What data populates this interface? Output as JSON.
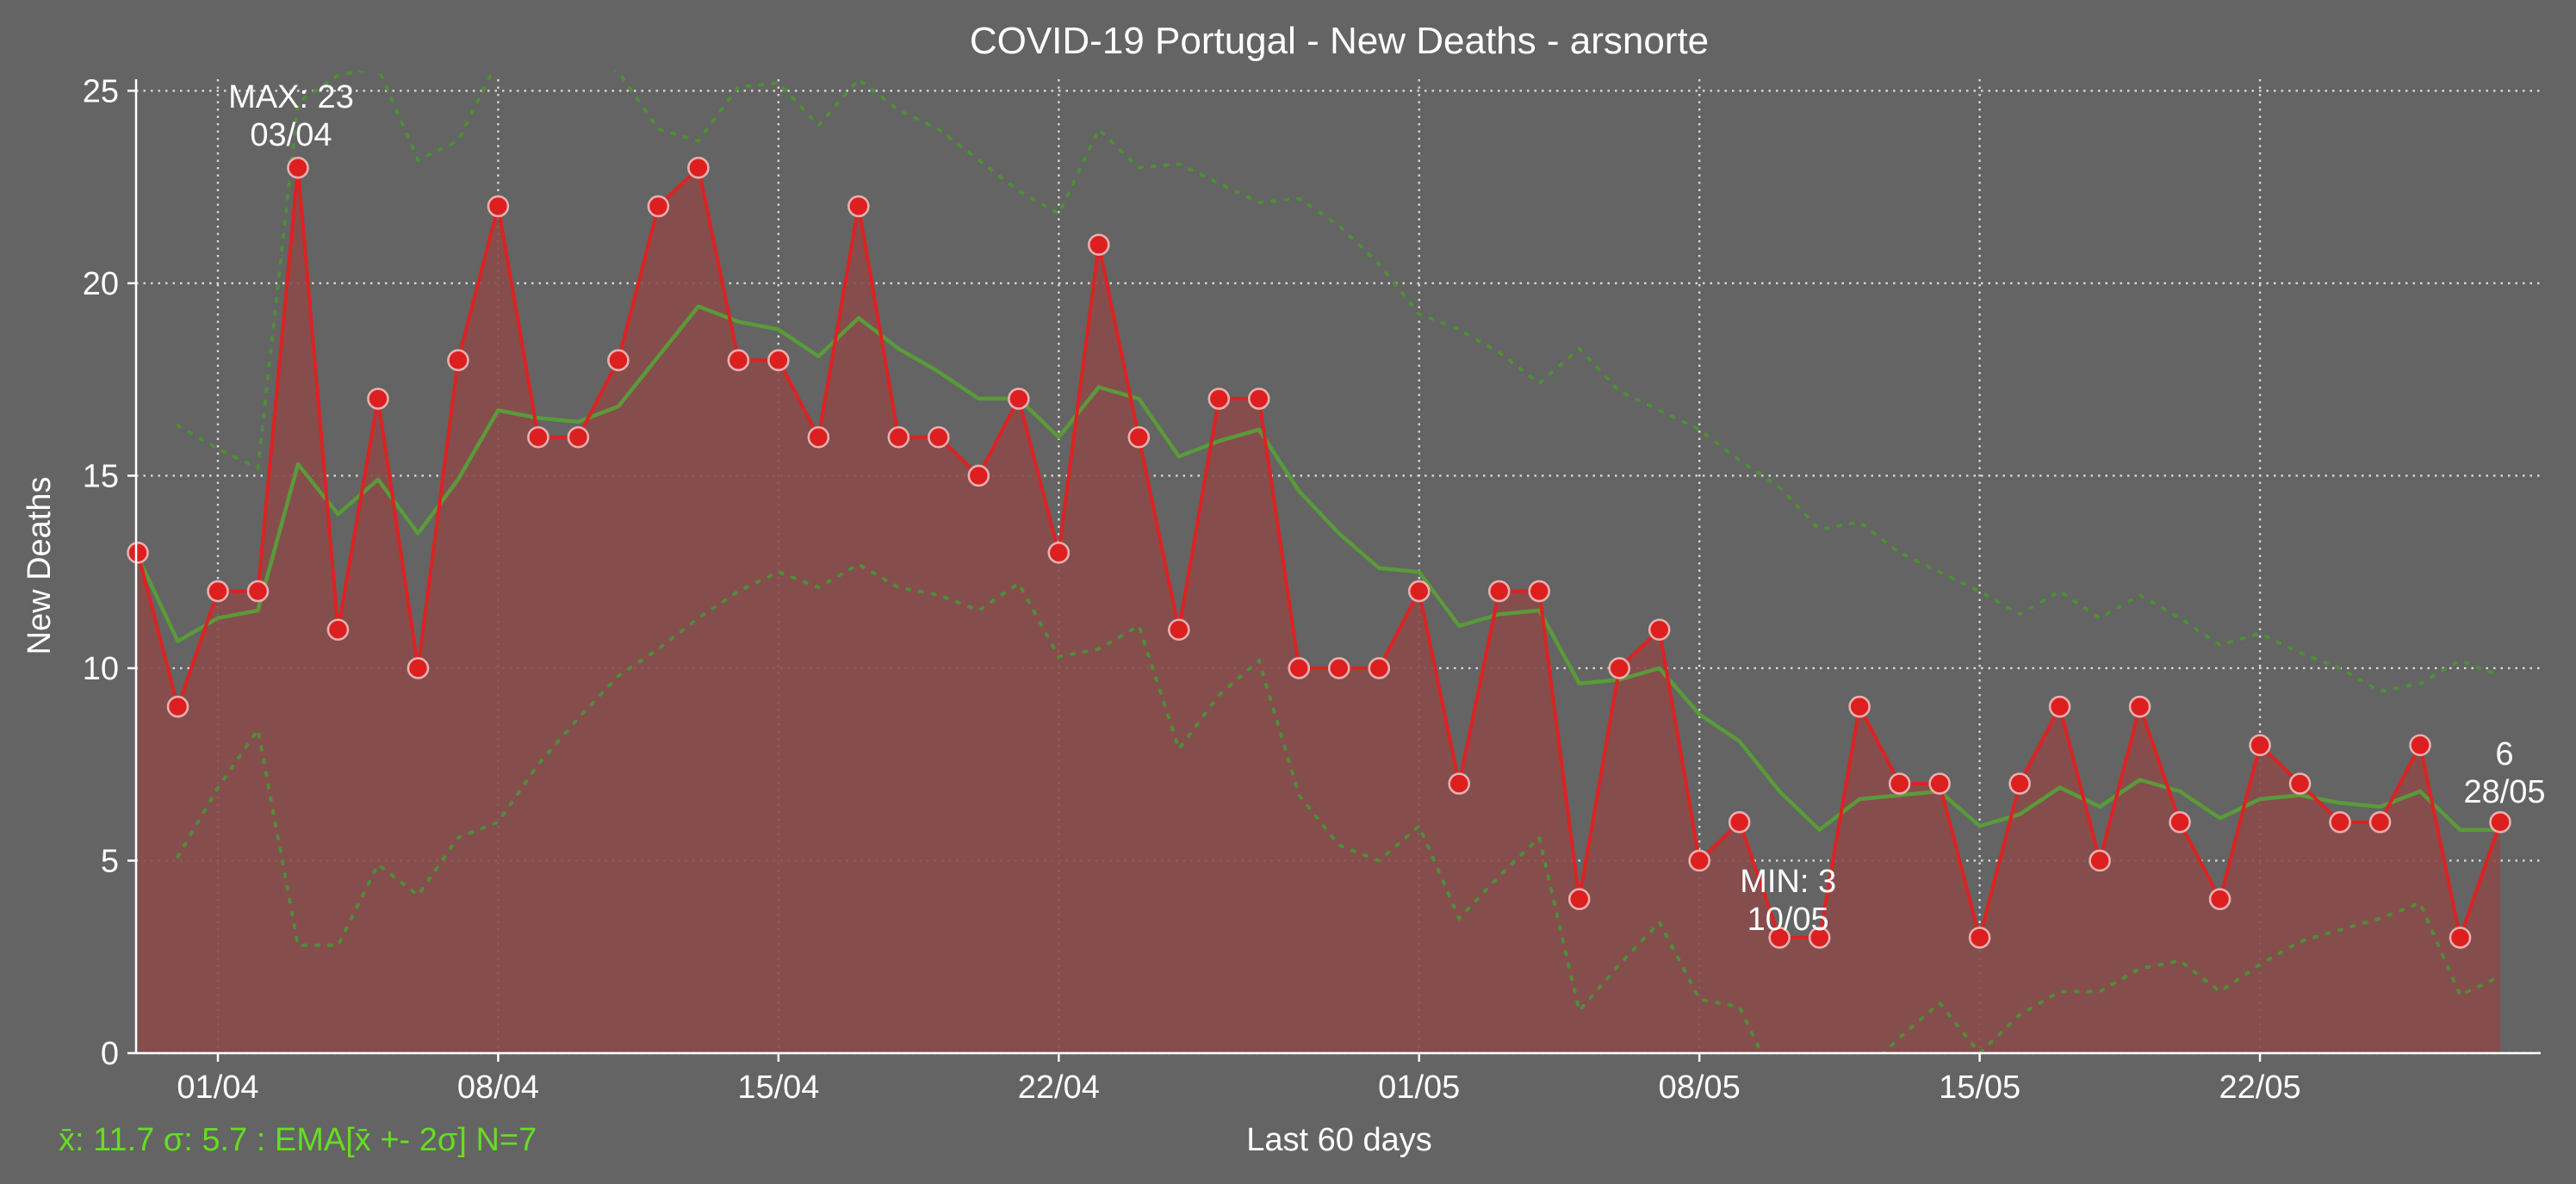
{
  "chart_data": {
    "type": "line",
    "title": "COVID-19 Portugal - New Deaths - arsnorte",
    "xlabel": "Last 60 days",
    "ylabel": "New Deaths",
    "ylim": [
      0,
      25.3
    ],
    "yticks": [
      0,
      5,
      10,
      15,
      20,
      25
    ],
    "xticks": [
      {
        "label": "01/04",
        "index": 2
      },
      {
        "label": "08/04",
        "index": 9
      },
      {
        "label": "15/04",
        "index": 16
      },
      {
        "label": "22/04",
        "index": 23
      },
      {
        "label": "01/05",
        "index": 32
      },
      {
        "label": "08/05",
        "index": 39
      },
      {
        "label": "15/05",
        "index": 46
      },
      {
        "label": "22/05",
        "index": 53
      }
    ],
    "grid": true,
    "colors": {
      "line": "#dd2222",
      "fill": "#8a4a4a",
      "marker_face": "#dd1f1f",
      "marker_edge": "#e8b0b0",
      "ema": "#5a9a3a",
      "band": "#4e8e38",
      "stats_text": "#66dd22",
      "background": "#636463"
    },
    "series": [
      {
        "name": "New Deaths",
        "values": [
          13,
          9,
          12,
          12,
          23,
          11,
          17,
          10,
          18,
          22,
          16,
          16,
          18,
          22,
          23,
          18,
          18,
          16,
          22,
          16,
          16,
          15,
          17,
          13,
          21,
          16,
          11,
          17,
          17,
          10,
          10,
          10,
          12,
          7,
          12,
          12,
          4,
          10,
          11,
          5,
          6,
          3,
          3,
          9,
          7,
          7,
          3,
          7,
          9,
          5,
          9,
          6,
          4,
          8,
          7,
          6,
          6,
          8,
          3,
          6
        ]
      },
      {
        "name": "EMA",
        "values": [
          12.9,
          10.7,
          11.3,
          11.5,
          15.3,
          14.0,
          14.9,
          13.5,
          14.9,
          16.7,
          16.5,
          16.4,
          16.8,
          18.1,
          19.4,
          19.0,
          18.8,
          18.1,
          19.1,
          18.3,
          17.7,
          17.0,
          17.0,
          16.0,
          17.3,
          17.0,
          15.5,
          15.9,
          16.2,
          14.6,
          13.5,
          12.6,
          12.5,
          11.1,
          11.4,
          11.5,
          9.6,
          9.7,
          10.0,
          8.8,
          8.1,
          6.8,
          5.8,
          6.6,
          6.7,
          6.8,
          5.9,
          6.2,
          6.9,
          6.4,
          7.1,
          6.8,
          6.1,
          6.6,
          6.7,
          6.5,
          6.4,
          6.8,
          5.8,
          5.8
        ]
      },
      {
        "name": "EMA + 2σ",
        "values": [
          null,
          16.3,
          15.7,
          15.2,
          24.7,
          25.4,
          25.6,
          23.2,
          23.7,
          25.8,
          26.0,
          26.1,
          25.5,
          24.0,
          23.7,
          25.1,
          25.2,
          24.1,
          25.3,
          24.5,
          24.0,
          23.2,
          22.4,
          21.8,
          24.0,
          23.0,
          23.1,
          22.6,
          22.1,
          22.2,
          21.5,
          20.5,
          19.2,
          18.8,
          18.2,
          17.4,
          18.3,
          17.2,
          16.7,
          16.2,
          15.4,
          14.7,
          13.6,
          13.8,
          13.0,
          12.5,
          12.0,
          11.4,
          12.0,
          11.3,
          11.9,
          11.3,
          10.6,
          10.9,
          10.4,
          10.0,
          9.4,
          9.6,
          10.2,
          9.8
        ]
      },
      {
        "name": "EMA - 2σ",
        "values": [
          null,
          5.1,
          6.9,
          8.4,
          2.8,
          2.8,
          4.9,
          4.1,
          5.6,
          6.0,
          7.5,
          8.7,
          9.8,
          10.5,
          11.3,
          12.0,
          12.5,
          12.1,
          12.7,
          12.1,
          11.9,
          11.5,
          12.2,
          10.3,
          10.5,
          11.1,
          7.9,
          9.3,
          10.2,
          6.7,
          5.4,
          5.0,
          5.9,
          3.5,
          4.6,
          5.6,
          1.1,
          2.3,
          3.4,
          1.4,
          1.2,
          -1.0,
          -2.0,
          -0.6,
          0.4,
          1.3,
          0.0,
          1.0,
          1.6,
          1.6,
          2.2,
          2.4,
          1.6,
          2.3,
          2.9,
          3.2,
          3.5,
          3.9,
          1.5,
          2.0
        ]
      }
    ],
    "annotations": {
      "max": {
        "index": 4,
        "value": 23,
        "line1": "MAX: 23",
        "line2": "03/04"
      },
      "min": {
        "index": 41,
        "value": 3,
        "line1": "MIN: 3",
        "line2": "10/05"
      },
      "last": {
        "index": 59,
        "value": 6,
        "line1": "6",
        "line2": "28/05"
      }
    },
    "stats_text": "x̄: 11.7 σ: 5.7 : EMA[x̄ +- 2σ] N=7"
  }
}
